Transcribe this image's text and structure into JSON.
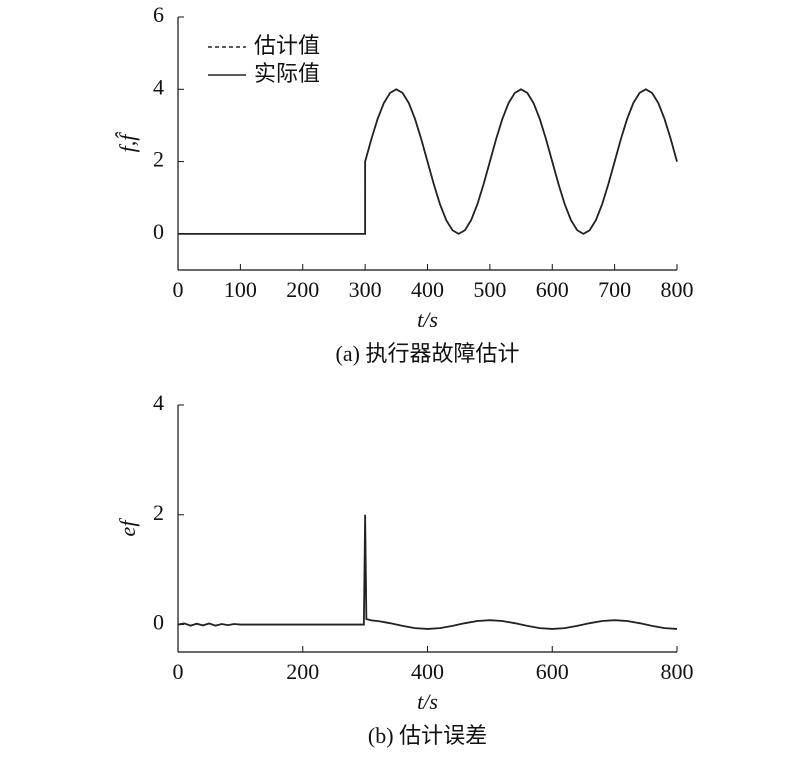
{
  "chart_data": [
    {
      "type": "line",
      "caption": "(a) 执行器故障估计",
      "xlabel": "t/s",
      "ylabel": "f,f̂",
      "xlim": [
        0,
        800
      ],
      "ylim": [
        -1,
        6
      ],
      "xticks": [
        0,
        100,
        200,
        300,
        400,
        500,
        600,
        700,
        800
      ],
      "yticks": [
        0,
        2,
        4,
        6
      ],
      "legend": "upper left",
      "x": [
        0,
        10,
        20,
        30,
        40,
        50,
        60,
        70,
        80,
        90,
        100,
        110,
        120,
        130,
        140,
        150,
        160,
        170,
        180,
        190,
        200,
        210,
        220,
        230,
        240,
        250,
        260,
        270,
        280,
        290,
        300,
        300,
        310,
        320,
        330,
        340,
        350,
        360,
        370,
        380,
        390,
        400,
        410,
        420,
        430,
        440,
        450,
        460,
        470,
        480,
        490,
        500,
        510,
        520,
        530,
        540,
        550,
        560,
        570,
        580,
        590,
        600,
        610,
        620,
        630,
        640,
        650,
        660,
        670,
        680,
        690,
        700,
        710,
        720,
        730,
        740,
        750,
        760,
        770,
        780,
        790,
        800
      ],
      "series": [
        {
          "name": "估计值",
          "color": "#222222",
          "dash": "4 3",
          "values": [
            0,
            0,
            0,
            0,
            0,
            0,
            0,
            0,
            0,
            0,
            0,
            0,
            0,
            0,
            0,
            0,
            0,
            0,
            0,
            0,
            0,
            0,
            0,
            0,
            0,
            0,
            0,
            0,
            0,
            0,
            0,
            2,
            2.62,
            3.18,
            3.62,
            3.9,
            4,
            3.9,
            3.62,
            3.18,
            2.62,
            2,
            1.38,
            0.82,
            0.38,
            0.1,
            0,
            0.1,
            0.38,
            0.82,
            1.38,
            2,
            2.62,
            3.18,
            3.62,
            3.9,
            4,
            3.9,
            3.62,
            3.18,
            2.62,
            2,
            1.38,
            0.82,
            0.38,
            0.1,
            0,
            0.1,
            0.38,
            0.82,
            1.38,
            2,
            2.62,
            3.18,
            3.62,
            3.9,
            4,
            3.9,
            3.62,
            3.18,
            2.62,
            2
          ]
        },
        {
          "name": "实际值",
          "color": "#222222",
          "dash": "none",
          "values": [
            0,
            0,
            0,
            0,
            0,
            0,
            0,
            0,
            0,
            0,
            0,
            0,
            0,
            0,
            0,
            0,
            0,
            0,
            0,
            0,
            0,
            0,
            0,
            0,
            0,
            0,
            0,
            0,
            0,
            0,
            0,
            2,
            2.62,
            3.18,
            3.62,
            3.9,
            4,
            3.9,
            3.62,
            3.18,
            2.62,
            2,
            1.38,
            0.82,
            0.38,
            0.1,
            0,
            0.1,
            0.38,
            0.82,
            1.38,
            2,
            2.62,
            3.18,
            3.62,
            3.9,
            4,
            3.9,
            3.62,
            3.18,
            2.62,
            2,
            1.38,
            0.82,
            0.38,
            0.1,
            0,
            0.1,
            0.38,
            0.82,
            1.38,
            2,
            2.62,
            3.18,
            3.62,
            3.9,
            4,
            3.9,
            3.62,
            3.18,
            2.62,
            2
          ]
        }
      ]
    },
    {
      "type": "line",
      "caption": "(b) 估计误差",
      "xlabel": "t/s",
      "ylabel": "ef",
      "xlim": [
        0,
        800
      ],
      "ylim": [
        -0.5,
        4
      ],
      "xticks": [
        0,
        200,
        400,
        600,
        800
      ],
      "yticks": [
        0,
        2,
        4
      ],
      "x": [
        0,
        10,
        20,
        30,
        40,
        50,
        60,
        70,
        80,
        90,
        100,
        110,
        120,
        130,
        140,
        150,
        160,
        170,
        180,
        190,
        200,
        210,
        220,
        230,
        240,
        250,
        260,
        270,
        280,
        290,
        298,
        300,
        302,
        310,
        320,
        340,
        360,
        380,
        400,
        420,
        440,
        460,
        480,
        500,
        520,
        540,
        560,
        580,
        600,
        620,
        640,
        660,
        680,
        700,
        720,
        740,
        760,
        780,
        800
      ],
      "series": [
        {
          "color": "#222222",
          "dash": "none",
          "values": [
            0,
            0.02,
            -0.02,
            0.015,
            -0.015,
            0.02,
            -0.02,
            0.01,
            -0.01,
            0.01,
            0,
            0,
            0,
            0,
            0,
            0,
            0,
            0,
            0,
            0,
            0,
            0,
            0,
            0,
            0,
            0,
            0,
            0,
            0,
            0,
            0,
            2,
            0.1,
            0.076,
            0.065,
            0.025,
            -0.025,
            -0.065,
            -0.08,
            -0.065,
            -0.025,
            0.025,
            0.065,
            0.08,
            0.065,
            0.025,
            -0.025,
            -0.065,
            -0.08,
            -0.065,
            -0.025,
            0.025,
            0.065,
            0.08,
            0.065,
            0.025,
            -0.025,
            -0.065,
            -0.08
          ]
        }
      ]
    }
  ]
}
